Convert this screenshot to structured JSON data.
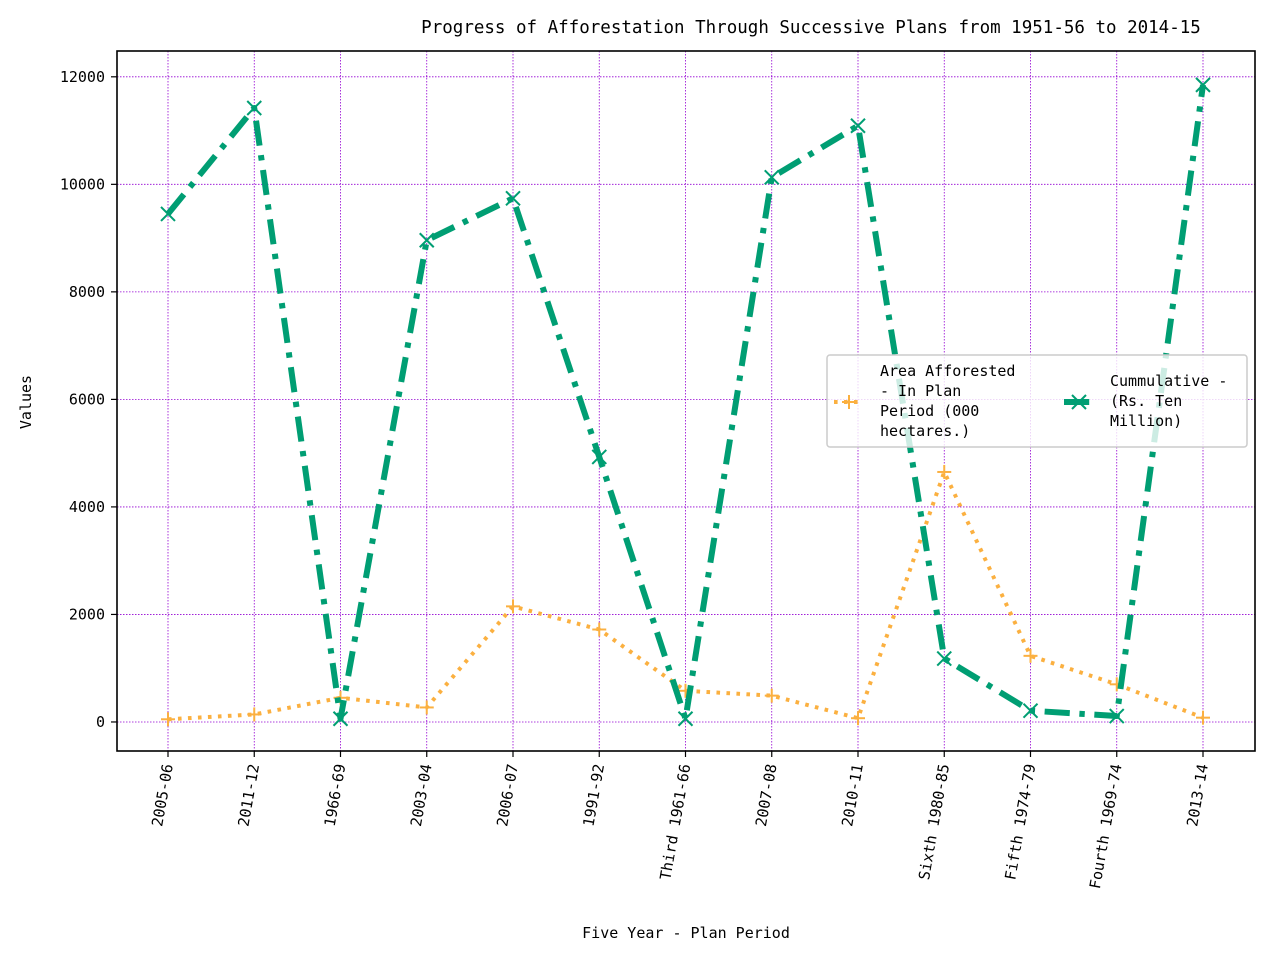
{
  "chart_data": {
    "type": "line",
    "title": "Progress of Afforestation Through Successive Plans from 1951-56 to 2014-15",
    "xlabel": "Five Year - Plan Period",
    "ylabel": "Values",
    "categories": [
      "2005-06",
      "2011-12",
      "1966-69",
      "2003-04",
      "2006-07",
      "1991-92",
      "Third 1961-66",
      "2007-08",
      "2010-11",
      "Sixth 1980-85",
      "Fifth 1974-79",
      "Fourth 1969-74",
      "2013-14"
    ],
    "ylim": [
      -540,
      12480
    ],
    "yticks": [
      0,
      2000,
      4000,
      6000,
      8000,
      10000,
      12000
    ],
    "grid": true,
    "grid_color": "#9400d3",
    "legend_position": "center-right",
    "series": [
      {
        "name": "Area Afforested - In Plan Period (000 hectares.)",
        "legend_lines": [
          "Area Afforested",
          "- In Plan",
          "Period (000",
          "hectares.)"
        ],
        "color": "#fbb040",
        "linestyle": "dotted",
        "marker": "plus",
        "values": [
          50,
          140,
          450,
          270,
          2150,
          1720,
          580,
          490,
          70,
          4650,
          1230,
          700,
          80
        ]
      },
      {
        "name": "Cummulative - (Rs. Ten Million)",
        "legend_lines": [
          "Cummulative -",
          "(Rs. Ten",
          "Million)"
        ],
        "color": "#009e73",
        "linestyle": "dashdot",
        "marker": "x",
        "values": [
          9450,
          11420,
          60,
          8960,
          9740,
          4930,
          60,
          10130,
          11090,
          1180,
          210,
          110,
          11850
        ]
      }
    ]
  }
}
